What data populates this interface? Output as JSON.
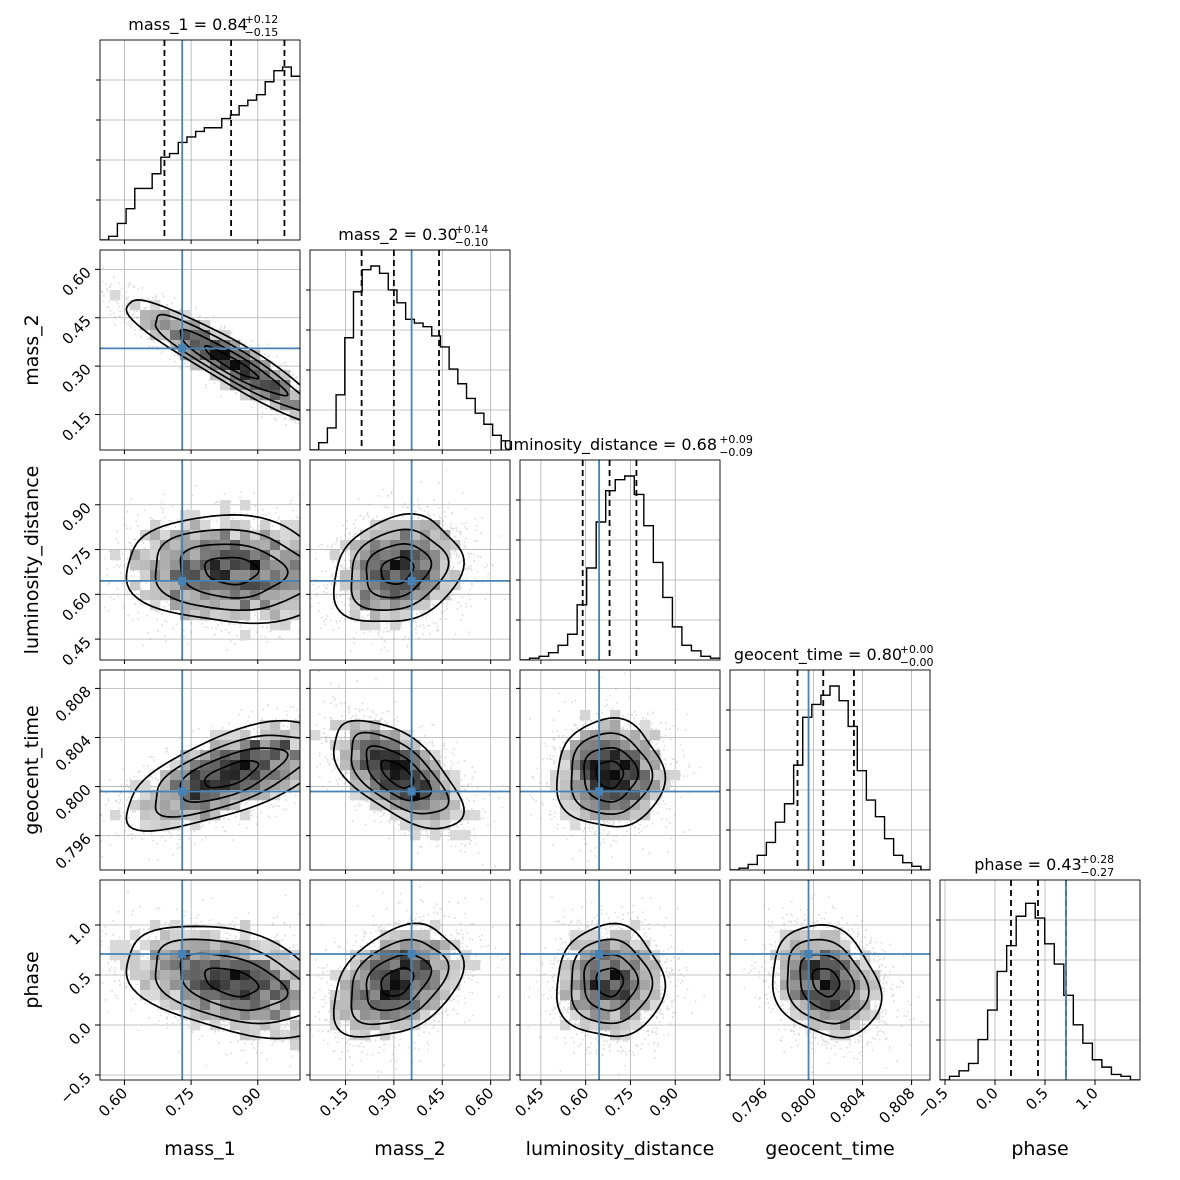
{
  "chart_data": {
    "type": "corner",
    "parameters": [
      "mass_1",
      "mass_2",
      "luminosity_distance",
      "geocent_time",
      "phase"
    ],
    "axis_labels": [
      "mass_1",
      "mass_2",
      "luminosity_distance",
      "geocent_time",
      "phase"
    ],
    "ranges": [
      [
        0.545,
        0.995
      ],
      [
        0.04,
        0.66
      ],
      [
        0.38,
        1.05
      ],
      [
        0.7932,
        0.8095
      ],
      [
        -0.55,
        1.45
      ]
    ],
    "truths": [
      0.73,
      0.355,
      0.645,
      0.7996,
      0.71
    ],
    "truth_color": "#4682b4",
    "ticks": {
      "mass_1": [
        0.6,
        0.75,
        0.9
      ],
      "mass_2": [
        0.15,
        0.3,
        0.45,
        0.6
      ],
      "luminosity_distance": [
        0.45,
        0.6,
        0.75,
        0.9
      ],
      "geocent_time": [
        0.796,
        0.8,
        0.804,
        0.808
      ],
      "phase": [
        -0.5,
        0.0,
        0.5,
        1.0
      ]
    },
    "tick_labels": {
      "mass_1": [
        "0.60",
        "0.75",
        "0.90"
      ],
      "mass_2": [
        "0.15",
        "0.30",
        "0.45",
        "0.60"
      ],
      "luminosity_distance": [
        "0.45",
        "0.60",
        "0.75",
        "0.90"
      ],
      "geocent_time": [
        "0.796",
        "0.800",
        "0.804",
        "0.808"
      ],
      "phase": [
        "−0.5",
        "0.0",
        "0.5",
        "1.0"
      ]
    },
    "titles": [
      {
        "param": "mass_1",
        "text": "mass_1 = 0.84",
        "upper": "+0.12",
        "lower": "−0.15"
      },
      {
        "param": "mass_2",
        "text": "mass_2 = 0.30",
        "upper": "+0.14",
        "lower": "−0.10"
      },
      {
        "param": "luminosity_distance",
        "text": "luminosity_distance = 0.68",
        "upper": "+0.09",
        "lower": "−0.09"
      },
      {
        "param": "geocent_time",
        "text": "geocent_time = 0.80",
        "upper": "+0.00",
        "lower": "−0.00"
      },
      {
        "param": "phase",
        "text": "phase = 0.43",
        "upper": "+0.28",
        "lower": "−0.27"
      }
    ],
    "quantiles": {
      "mass_1": [
        0.69,
        0.84,
        0.96
      ],
      "mass_2": [
        0.2,
        0.3,
        0.44
      ],
      "luminosity_distance": [
        0.59,
        0.68,
        0.77
      ],
      "geocent_time": [
        0.7987,
        0.8008,
        0.8033
      ],
      "phase": [
        0.16,
        0.43,
        0.71
      ]
    },
    "histograms": {
      "mass_1": [
        0.0,
        0.02,
        0.09,
        0.17,
        0.28,
        0.28,
        0.36,
        0.45,
        0.47,
        0.53,
        0.56,
        0.59,
        0.61,
        0.61,
        0.66,
        0.68,
        0.73,
        0.76,
        0.79,
        0.86,
        0.92,
        0.94,
        0.89
      ],
      "mass_2": [
        0.0,
        0.04,
        0.12,
        0.3,
        0.61,
        0.86,
        0.98,
        1.0,
        0.96,
        0.87,
        0.8,
        0.71,
        0.69,
        0.67,
        0.62,
        0.56,
        0.44,
        0.36,
        0.28,
        0.2,
        0.14,
        0.08,
        0.05
      ],
      "luminosity_distance": [
        0.0,
        0.01,
        0.02,
        0.04,
        0.08,
        0.14,
        0.3,
        0.5,
        0.75,
        0.92,
        0.98,
        1.0,
        0.9,
        0.73,
        0.53,
        0.34,
        0.18,
        0.08,
        0.05,
        0.02,
        0.01
      ],
      "geocent_time": [
        0.0,
        0.01,
        0.03,
        0.08,
        0.15,
        0.26,
        0.36,
        0.57,
        0.83,
        0.9,
        0.95,
        1.0,
        0.92,
        0.78,
        0.54,
        0.38,
        0.29,
        0.17,
        0.08,
        0.04,
        0.02,
        0.0
      ],
      "phase": [
        0.0,
        0.02,
        0.05,
        0.09,
        0.22,
        0.38,
        0.59,
        0.73,
        0.89,
        0.96,
        0.88,
        0.74,
        0.63,
        0.46,
        0.3,
        0.2,
        0.11,
        0.07,
        0.03,
        0.02,
        0.0
      ]
    },
    "pairs": [
      {
        "x": "mass_1",
        "y": "mass_2",
        "mean": [
          0.84,
          0.31
        ],
        "sd": [
          0.12,
          0.1
        ],
        "rho": -0.93
      },
      {
        "x": "mass_1",
        "y": "luminosity_distance",
        "mean": [
          0.84,
          0.68
        ],
        "sd": [
          0.12,
          0.09
        ],
        "rho": -0.1
      },
      {
        "x": "mass_2",
        "y": "luminosity_distance",
        "mean": [
          0.31,
          0.68
        ],
        "sd": [
          0.1,
          0.09
        ],
        "rho": 0.2
      },
      {
        "x": "mass_1",
        "y": "geocent_time",
        "mean": [
          0.84,
          0.801
        ],
        "sd": [
          0.12,
          0.0022
        ],
        "rho": 0.65
      },
      {
        "x": "mass_2",
        "y": "geocent_time",
        "mean": [
          0.31,
          0.801
        ],
        "sd": [
          0.1,
          0.0022
        ],
        "rho": -0.6
      },
      {
        "x": "luminosity_distance",
        "y": "geocent_time",
        "mean": [
          0.68,
          0.801
        ],
        "sd": [
          0.09,
          0.0022
        ],
        "rho": 0.0
      },
      {
        "x": "mass_1",
        "y": "phase",
        "mean": [
          0.84,
          0.43
        ],
        "sd": [
          0.12,
          0.28
        ],
        "rho": -0.4
      },
      {
        "x": "mass_2",
        "y": "phase",
        "mean": [
          0.31,
          0.43
        ],
        "sd": [
          0.1,
          0.28
        ],
        "rho": 0.35
      },
      {
        "x": "luminosity_distance",
        "y": "phase",
        "mean": [
          0.68,
          0.43
        ],
        "sd": [
          0.09,
          0.28
        ],
        "rho": 0.0
      },
      {
        "x": "geocent_time",
        "y": "phase",
        "mean": [
          0.801,
          0.43
        ],
        "sd": [
          0.0022,
          0.28
        ],
        "rho": -0.2
      }
    ],
    "grid": true
  }
}
